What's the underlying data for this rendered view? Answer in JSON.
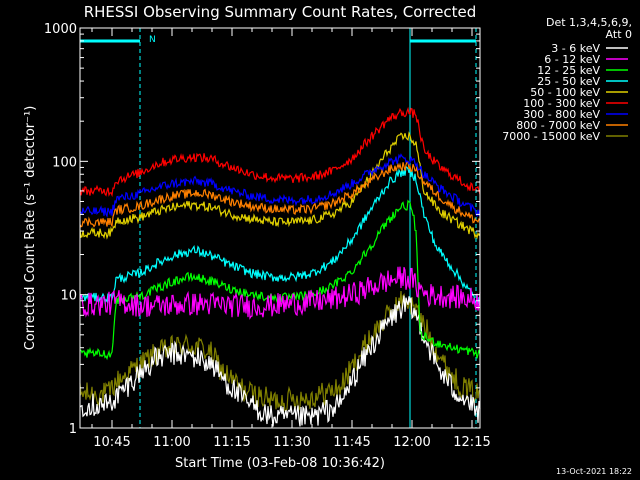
{
  "chart_data": {
    "type": "line",
    "title": "RHESSI Observing Summary Count Rates, Corrected",
    "xlabel": "Start Time (03-Feb-08 10:36:42)",
    "ylabel": "Corrected Count Rate (s⁻¹ detector⁻¹)",
    "y_scale": "log",
    "ylim": [
      1,
      1000
    ],
    "xlim_minutes": [
      37,
      137
    ],
    "x_ticks": [
      {
        "label": "10:45",
        "minutes": 45
      },
      {
        "label": "11:00",
        "minutes": 60
      },
      {
        "label": "11:15",
        "minutes": 75
      },
      {
        "label": "11:30",
        "minutes": 90
      },
      {
        "label": "11:45",
        "minutes": 105
      },
      {
        "label": "12:00",
        "minutes": 120
      },
      {
        "label": "12:15",
        "minutes": 135
      }
    ],
    "y_ticks": [
      {
        "label": "1",
        "value": 1
      },
      {
        "label": "10",
        "value": 10
      },
      {
        "label": "100",
        "value": 100
      },
      {
        "label": "1000",
        "value": 1000
      }
    ],
    "legend_header": [
      "Det 1,3,4,5,6,9,",
      "Att 0"
    ],
    "flag_label": "N",
    "night_markers_minutes": [
      52,
      136
    ],
    "attenuator_marker_minutes": 119.5,
    "series": [
      {
        "name": "3 - 6 keV",
        "color": "#ffffff",
        "points": [
          [
            37,
            1.5
          ],
          [
            44,
            1.5
          ],
          [
            46,
            1.7
          ],
          [
            52,
            2.6
          ],
          [
            56,
            3.3
          ],
          [
            60,
            3.6
          ],
          [
            64,
            3.5
          ],
          [
            67,
            3.3
          ],
          [
            70,
            3.0
          ],
          [
            72,
            2.5
          ],
          [
            78,
            1.6
          ],
          [
            85,
            1.2
          ],
          [
            95,
            1.2
          ],
          [
            102,
            1.5
          ],
          [
            106,
            2.6
          ],
          [
            110,
            4.2
          ],
          [
            114,
            6.2
          ],
          [
            117,
            8.0
          ],
          [
            119,
            8.2
          ],
          [
            121,
            7.0
          ],
          [
            122,
            6.0
          ],
          [
            126,
            3.0
          ],
          [
            130,
            2.0
          ],
          [
            134,
            1.6
          ],
          [
            136,
            1.3
          ]
        ]
      },
      {
        "name": "6 - 12 keV",
        "color": "#ff00ff",
        "points": [
          [
            37,
            8.5
          ],
          [
            44,
            8.5
          ],
          [
            46,
            9.0
          ],
          [
            52,
            8.3
          ],
          [
            58,
            8.3
          ],
          [
            64,
            8.5
          ],
          [
            70,
            8.5
          ],
          [
            75,
            8.3
          ],
          [
            80,
            8.2
          ],
          [
            85,
            8.3
          ],
          [
            90,
            8.6
          ],
          [
            95,
            8.8
          ],
          [
            100,
            9.2
          ],
          [
            105,
            10.0
          ],
          [
            110,
            11.5
          ],
          [
            115,
            13.0
          ],
          [
            118,
            13.5
          ],
          [
            120,
            13.0
          ],
          [
            121,
            11.5
          ],
          [
            124,
            10.0
          ],
          [
            128,
            9.8
          ],
          [
            132,
            9.5
          ],
          [
            136,
            9.2
          ]
        ]
      },
      {
        "name": "12 - 25 keV",
        "color": "#00ff00",
        "points": [
          [
            37,
            3.6
          ],
          [
            45,
            3.6
          ],
          [
            46,
            9.0
          ],
          [
            52,
            9.8
          ],
          [
            56,
            11.0
          ],
          [
            60,
            12.5
          ],
          [
            64,
            13.5
          ],
          [
            66,
            13.5
          ],
          [
            70,
            12.5
          ],
          [
            75,
            11.0
          ],
          [
            80,
            10.0
          ],
          [
            85,
            9.5
          ],
          [
            90,
            9.5
          ],
          [
            95,
            10.0
          ],
          [
            100,
            11.5
          ],
          [
            105,
            15.0
          ],
          [
            110,
            24.0
          ],
          [
            114,
            36.0
          ],
          [
            117,
            45.0
          ],
          [
            119,
            47.0
          ],
          [
            120,
            44.0
          ],
          [
            121,
            30.0
          ],
          [
            122,
            5.0
          ],
          [
            125,
            4.5
          ],
          [
            130,
            4.0
          ],
          [
            134,
            3.8
          ],
          [
            136,
            3.6
          ]
        ]
      },
      {
        "name": "25 - 50 keV",
        "color": "#00ffff",
        "points": [
          [
            37,
            9.5
          ],
          [
            45,
            9.5
          ],
          [
            46,
            13.0
          ],
          [
            52,
            14.5
          ],
          [
            56,
            17.0
          ],
          [
            60,
            19.5
          ],
          [
            64,
            21.0
          ],
          [
            66,
            21.5
          ],
          [
            70,
            19.5
          ],
          [
            75,
            16.5
          ],
          [
            80,
            14.5
          ],
          [
            85,
            13.5
          ],
          [
            90,
            13.5
          ],
          [
            95,
            14.5
          ],
          [
            100,
            17.5
          ],
          [
            105,
            26.0
          ],
          [
            110,
            45.0
          ],
          [
            114,
            68.0
          ],
          [
            117,
            82.0
          ],
          [
            119,
            85.0
          ],
          [
            121,
            75.0
          ],
          [
            123,
            40.0
          ],
          [
            126,
            23.0
          ],
          [
            130,
            16.0
          ],
          [
            134,
            11.0
          ],
          [
            136,
            9.0
          ]
        ]
      },
      {
        "name": "50 - 100 keV",
        "color": "#e0d000",
        "points": [
          [
            37,
            29
          ],
          [
            45,
            29
          ],
          [
            46,
            36
          ],
          [
            52,
            38
          ],
          [
            56,
            42
          ],
          [
            60,
            45
          ],
          [
            64,
            47
          ],
          [
            66,
            47
          ],
          [
            70,
            45
          ],
          [
            75,
            40
          ],
          [
            80,
            37
          ],
          [
            85,
            35
          ],
          [
            90,
            35
          ],
          [
            95,
            36
          ],
          [
            100,
            40
          ],
          [
            105,
            50
          ],
          [
            110,
            80
          ],
          [
            114,
            120
          ],
          [
            117,
            150
          ],
          [
            119,
            155
          ],
          [
            121,
            135
          ],
          [
            123,
            60
          ],
          [
            127,
            42
          ],
          [
            131,
            35
          ],
          [
            134,
            31
          ],
          [
            136,
            29
          ]
        ]
      },
      {
        "name": "100 - 300 keV",
        "color": "#ff0000",
        "points": [
          [
            37,
            60
          ],
          [
            45,
            60
          ],
          [
            46,
            72
          ],
          [
            52,
            82
          ],
          [
            56,
            95
          ],
          [
            60,
            103
          ],
          [
            64,
            107
          ],
          [
            66,
            108
          ],
          [
            70,
            104
          ],
          [
            75,
            90
          ],
          [
            80,
            80
          ],
          [
            85,
            75
          ],
          [
            90,
            74
          ],
          [
            95,
            76
          ],
          [
            100,
            84
          ],
          [
            105,
            105
          ],
          [
            110,
            155
          ],
          [
            114,
            205
          ],
          [
            117,
            230
          ],
          [
            119,
            235
          ],
          [
            121,
            225
          ],
          [
            123,
            120
          ],
          [
            127,
            90
          ],
          [
            131,
            75
          ],
          [
            134,
            66
          ],
          [
            136,
            60
          ]
        ]
      },
      {
        "name": "300 - 800 keV",
        "color": "#0000ff",
        "points": [
          [
            37,
            42
          ],
          [
            45,
            42
          ],
          [
            46,
            52
          ],
          [
            52,
            57
          ],
          [
            56,
            63
          ],
          [
            60,
            68
          ],
          [
            64,
            70
          ],
          [
            66,
            71
          ],
          [
            70,
            68
          ],
          [
            75,
            60
          ],
          [
            80,
            55
          ],
          [
            85,
            52
          ],
          [
            90,
            51
          ],
          [
            95,
            52
          ],
          [
            100,
            57
          ],
          [
            105,
            68
          ],
          [
            110,
            85
          ],
          [
            114,
            98
          ],
          [
            117,
            105
          ],
          [
            119,
            104
          ],
          [
            121,
            98
          ],
          [
            123,
            80
          ],
          [
            127,
            63
          ],
          [
            131,
            52
          ],
          [
            134,
            46
          ],
          [
            136,
            42
          ]
        ]
      },
      {
        "name": "800 - 7000 keV",
        "color": "#ff8000",
        "points": [
          [
            37,
            35
          ],
          [
            45,
            35
          ],
          [
            46,
            43
          ],
          [
            52,
            46
          ],
          [
            56,
            51
          ],
          [
            60,
            55
          ],
          [
            64,
            57
          ],
          [
            66,
            58
          ],
          [
            70,
            56
          ],
          [
            75,
            50
          ],
          [
            80,
            46
          ],
          [
            85,
            44
          ],
          [
            90,
            43
          ],
          [
            95,
            44
          ],
          [
            100,
            48
          ],
          [
            105,
            57
          ],
          [
            110,
            72
          ],
          [
            114,
            86
          ],
          [
            117,
            92
          ],
          [
            119,
            92
          ],
          [
            121,
            87
          ],
          [
            123,
            70
          ],
          [
            127,
            54
          ],
          [
            131,
            44
          ],
          [
            134,
            39
          ],
          [
            136,
            36
          ]
        ]
      },
      {
        "name": "7000 - 15000 keV",
        "color": "#808000",
        "points": [
          [
            37,
            1.8
          ],
          [
            44,
            1.8
          ],
          [
            46,
            2.2
          ],
          [
            52,
            3.0
          ],
          [
            56,
            3.6
          ],
          [
            60,
            4.0
          ],
          [
            64,
            4.2
          ],
          [
            67,
            4.0
          ],
          [
            70,
            3.6
          ],
          [
            72,
            2.8
          ],
          [
            78,
            1.9
          ],
          [
            85,
            1.6
          ],
          [
            95,
            1.7
          ],
          [
            102,
            2.0
          ],
          [
            106,
            3.2
          ],
          [
            110,
            5.0
          ],
          [
            114,
            7.0
          ],
          [
            117,
            8.8
          ],
          [
            119,
            9.0
          ],
          [
            121,
            7.5
          ],
          [
            124,
            5.2
          ],
          [
            128,
            3.0
          ],
          [
            132,
            2.1
          ],
          [
            136,
            1.8
          ]
        ]
      }
    ]
  },
  "footer": {
    "timestamp": "13-Oct-2021 18:22"
  }
}
